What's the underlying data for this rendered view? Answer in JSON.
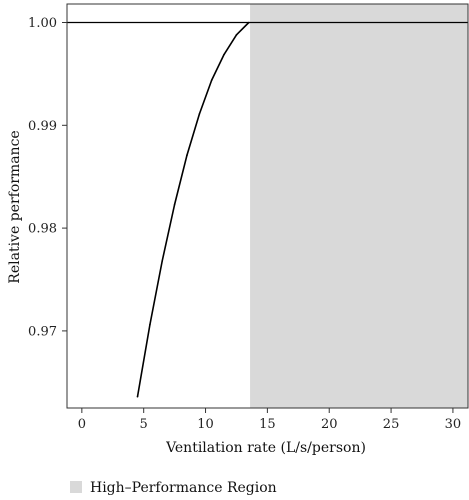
{
  "chart_data": {
    "type": "line",
    "xlabel": "Ventilation rate (L/s/person)",
    "ylabel": "Relative performance",
    "xlim": [
      -1.2,
      31.3
    ],
    "ylim": [
      0.9625,
      1.0018
    ],
    "x_ticks": [
      0,
      5,
      10,
      15,
      20,
      25,
      30
    ],
    "y_ticks": [
      0.97,
      0.98,
      0.99,
      1.0
    ],
    "x_tick_labels": [
      "0",
      "5",
      "10",
      "15",
      "20",
      "25",
      "30"
    ],
    "y_tick_labels": [
      "0.97",
      "0.98",
      "0.99",
      "1.00"
    ],
    "series": [
      {
        "x": [
          4.5,
          5.5,
          6.5,
          7.5,
          8.5,
          9.5,
          10.5,
          11.5,
          12.5,
          13.5
        ],
        "y": [
          0.9636,
          0.9706,
          0.9768,
          0.9823,
          0.9871,
          0.9911,
          0.9944,
          0.9969,
          0.9988,
          1.0
        ],
        "color": "#000000"
      }
    ],
    "reference_line": {
      "y": 1.0,
      "color": "#000000"
    },
    "shaded_region": {
      "label": "High–Performance Region",
      "x_from": 13.6,
      "x_to": 31.3,
      "color": "#d9d9d9"
    },
    "grid": false,
    "legend": {
      "position": "bottom-left",
      "entries": [
        {
          "label": "High–Performance Region",
          "color": "#d9d9d9"
        }
      ]
    }
  }
}
